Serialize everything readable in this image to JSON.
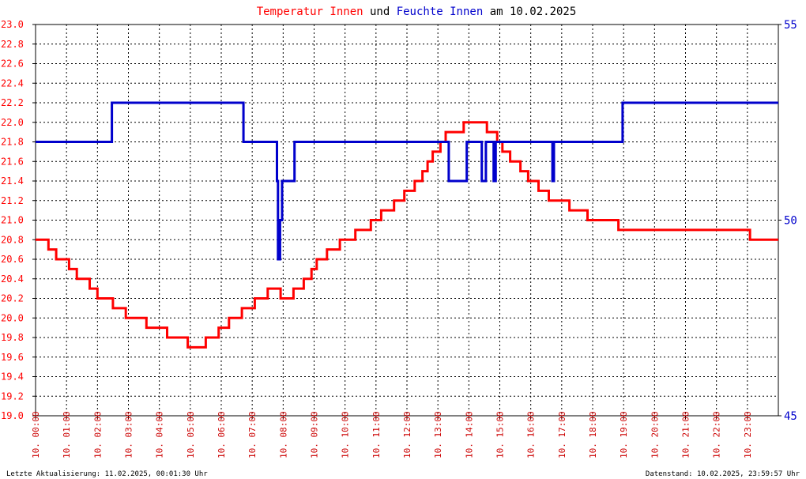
{
  "title_parts": [
    {
      "text": "Temperatur Innen",
      "color": "#ff0000"
    },
    {
      "text": " und ",
      "color": "#000000"
    },
    {
      "text": "Feuchte Innen",
      "color": "#0000cc"
    },
    {
      "text": " am 10.02.2025",
      "color": "#000000"
    }
  ],
  "footer": {
    "left": "Letzte Aktualisierung: 11.02.2025, 00:01:30 Uhr",
    "right": "Datenstand: 10.02.2025, 23:59:57 Uhr"
  },
  "chart_data": {
    "type": "line",
    "grid": true,
    "x_range": [
      "00:00",
      "24:00"
    ],
    "x_ticks": [
      "10. 00:00",
      "10. 01:00",
      "10. 02:00",
      "10. 03:00",
      "10. 04:00",
      "10. 05:00",
      "10. 06:00",
      "10. 07:00",
      "10. 08:00",
      "10. 09:00",
      "10. 10:00",
      "10. 11:00",
      "10. 12:00",
      "10. 13:00",
      "10. 14:00",
      "10. 15:00",
      "10. 16:00",
      "10. 17:00",
      "10. 18:00",
      "10. 19:00",
      "10. 20:00",
      "10. 21:00",
      "10. 22:00",
      "10. 23:00"
    ],
    "y_left": {
      "range": [
        19.0,
        23.0
      ],
      "ticks": [
        "19.0",
        "19.2",
        "19.4",
        "19.6",
        "19.8",
        "20.0",
        "20.2",
        "20.4",
        "20.6",
        "20.8",
        "21.0",
        "21.2",
        "21.4",
        "21.6",
        "21.8",
        "22.0",
        "22.2",
        "22.4",
        "22.6",
        "22.8",
        "23.0"
      ],
      "color": "#ff0000"
    },
    "y_right": {
      "range": [
        45,
        55
      ],
      "ticks": [
        "45",
        "50",
        "55"
      ],
      "color": "#0000cc"
    },
    "series": [
      {
        "name": "Temperatur Innen",
        "axis": "left",
        "color": "#ff0000",
        "points": [
          [
            "00:00",
            20.8
          ],
          [
            "00:25",
            20.8
          ],
          [
            "00:25",
            20.7
          ],
          [
            "00:40",
            20.7
          ],
          [
            "00:40",
            20.6
          ],
          [
            "01:05",
            20.6
          ],
          [
            "01:05",
            20.5
          ],
          [
            "01:20",
            20.5
          ],
          [
            "01:20",
            20.4
          ],
          [
            "01:45",
            20.4
          ],
          [
            "01:45",
            20.3
          ],
          [
            "02:00",
            20.3
          ],
          [
            "02:00",
            20.2
          ],
          [
            "02:30",
            20.2
          ],
          [
            "02:30",
            20.1
          ],
          [
            "02:55",
            20.1
          ],
          [
            "02:55",
            20.0
          ],
          [
            "03:35",
            20.0
          ],
          [
            "03:35",
            19.9
          ],
          [
            "04:15",
            19.9
          ],
          [
            "04:15",
            19.8
          ],
          [
            "04:55",
            19.8
          ],
          [
            "04:55",
            19.7
          ],
          [
            "05:30",
            19.7
          ],
          [
            "05:30",
            19.8
          ],
          [
            "05:55",
            19.8
          ],
          [
            "05:55",
            19.9
          ],
          [
            "06:15",
            19.9
          ],
          [
            "06:15",
            20.0
          ],
          [
            "06:40",
            20.0
          ],
          [
            "06:40",
            20.1
          ],
          [
            "07:05",
            20.1
          ],
          [
            "07:05",
            20.2
          ],
          [
            "07:30",
            20.2
          ],
          [
            "07:30",
            20.3
          ],
          [
            "07:55",
            20.3
          ],
          [
            "07:55",
            20.2
          ],
          [
            "08:20",
            20.2
          ],
          [
            "08:20",
            20.3
          ],
          [
            "08:40",
            20.3
          ],
          [
            "08:40",
            20.4
          ],
          [
            "08:55",
            20.4
          ],
          [
            "08:55",
            20.5
          ],
          [
            "09:05",
            20.5
          ],
          [
            "09:05",
            20.6
          ],
          [
            "09:25",
            20.6
          ],
          [
            "09:25",
            20.7
          ],
          [
            "09:50",
            20.7
          ],
          [
            "09:50",
            20.8
          ],
          [
            "10:20",
            20.8
          ],
          [
            "10:20",
            20.9
          ],
          [
            "10:50",
            20.9
          ],
          [
            "10:50",
            21.0
          ],
          [
            "11:10",
            21.0
          ],
          [
            "11:10",
            21.1
          ],
          [
            "11:35",
            21.1
          ],
          [
            "11:35",
            21.2
          ],
          [
            "11:55",
            21.2
          ],
          [
            "11:55",
            21.3
          ],
          [
            "12:15",
            21.3
          ],
          [
            "12:15",
            21.4
          ],
          [
            "12:30",
            21.4
          ],
          [
            "12:30",
            21.5
          ],
          [
            "12:40",
            21.5
          ],
          [
            "12:40",
            21.6
          ],
          [
            "12:50",
            21.6
          ],
          [
            "12:50",
            21.7
          ],
          [
            "13:05",
            21.7
          ],
          [
            "13:05",
            21.8
          ],
          [
            "13:15",
            21.8
          ],
          [
            "13:15",
            21.9
          ],
          [
            "13:50",
            21.9
          ],
          [
            "13:50",
            22.0
          ],
          [
            "14:35",
            22.0
          ],
          [
            "14:35",
            21.9
          ],
          [
            "14:55",
            21.9
          ],
          [
            "14:55",
            21.8
          ],
          [
            "15:05",
            21.8
          ],
          [
            "15:05",
            21.7
          ],
          [
            "15:20",
            21.7
          ],
          [
            "15:20",
            21.6
          ],
          [
            "15:40",
            21.6
          ],
          [
            "15:40",
            21.5
          ],
          [
            "15:55",
            21.5
          ],
          [
            "15:55",
            21.4
          ],
          [
            "16:15",
            21.4
          ],
          [
            "16:15",
            21.3
          ],
          [
            "16:35",
            21.3
          ],
          [
            "16:35",
            21.2
          ],
          [
            "17:15",
            21.2
          ],
          [
            "17:15",
            21.1
          ],
          [
            "17:50",
            21.1
          ],
          [
            "17:50",
            21.0
          ],
          [
            "18:50",
            21.0
          ],
          [
            "18:50",
            20.9
          ],
          [
            "19:55",
            20.9
          ],
          [
            "19:55",
            20.9
          ],
          [
            "23:05",
            20.9
          ],
          [
            "23:05",
            20.8
          ],
          [
            "24:00",
            20.8
          ]
        ]
      },
      {
        "name": "Feuchte Innen",
        "axis": "right",
        "color": "#0000cc",
        "points": [
          [
            "00:00",
            52.0
          ],
          [
            "02:28",
            52.0
          ],
          [
            "02:28",
            53.0
          ],
          [
            "06:43",
            53.0
          ],
          [
            "06:43",
            52.0
          ],
          [
            "07:48",
            52.0
          ],
          [
            "07:48",
            51.0
          ],
          [
            "07:50",
            51.0
          ],
          [
            "07:50",
            49.0
          ],
          [
            "07:54",
            49.0
          ],
          [
            "07:54",
            50.0
          ],
          [
            "07:58",
            50.0
          ],
          [
            "07:58",
            51.0
          ],
          [
            "08:22",
            51.0
          ],
          [
            "08:22",
            52.0
          ],
          [
            "13:21",
            52.0
          ],
          [
            "13:21",
            51.0
          ],
          [
            "13:56",
            51.0
          ],
          [
            "13:56",
            52.0
          ],
          [
            "14:25",
            52.0
          ],
          [
            "14:25",
            51.0
          ],
          [
            "14:33",
            51.0
          ],
          [
            "14:33",
            52.0
          ],
          [
            "14:48",
            52.0
          ],
          [
            "14:48",
            51.0
          ],
          [
            "14:52",
            51.0
          ],
          [
            "14:52",
            52.0
          ],
          [
            "16:42",
            52.0
          ],
          [
            "16:42",
            51.0
          ],
          [
            "16:45",
            51.0
          ],
          [
            "16:45",
            52.0
          ],
          [
            "18:58",
            52.0
          ],
          [
            "18:58",
            53.0
          ],
          [
            "24:00",
            53.0
          ]
        ]
      }
    ]
  }
}
